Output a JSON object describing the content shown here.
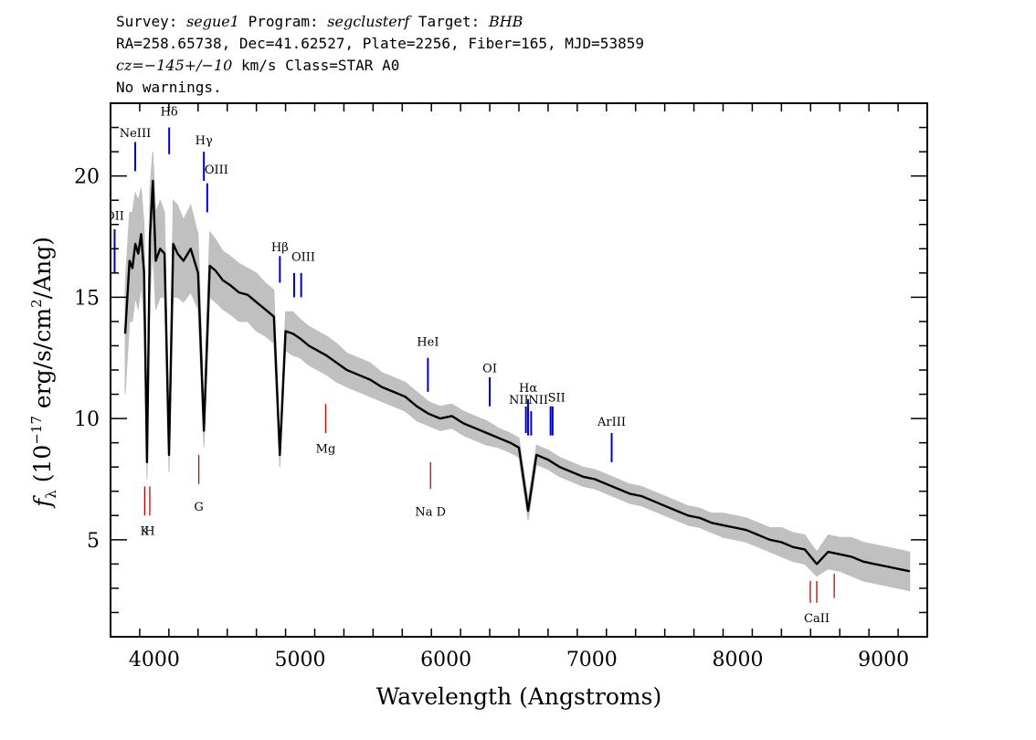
{
  "header": {
    "line1": {
      "survey_label": "Survey: ",
      "survey": "segue1",
      "program_label": " Program: ",
      "program": "segclusterf",
      "target_label": " Target: ",
      "target": "BHB"
    },
    "line2": "RA=258.65738, Dec=41.62527, Plate=2256, Fiber=165, MJD=53859",
    "line3": {
      "cz": "cz=−145+/−10",
      "rest": " km/s Class=STAR A0"
    },
    "line4": "No warnings."
  },
  "chart_data": {
    "type": "line",
    "title": "",
    "xlabel": "Wavelength (Angstroms)",
    "ylabel_prefix": "f",
    "ylabel_subscript": "λ",
    "ylabel_rest_1": "(10",
    "ylabel_exp": "−17",
    "ylabel_rest_2": "erg/s/cm",
    "ylabel_exp2": "2",
    "ylabel_rest_3": "/Ang)",
    "xlim": [
      3700,
      9300
    ],
    "ylim": [
      1,
      23
    ],
    "x_ticks": [
      4000,
      5000,
      6000,
      7000,
      8000,
      9000
    ],
    "y_ticks": [
      5,
      10,
      15,
      20
    ],
    "series": [
      {
        "role": "flux",
        "color": "#000000",
        "x": [
          3800,
          3830,
          3850,
          3870,
          3890,
          3910,
          3930,
          3950,
          3970,
          3990,
          4010,
          4040,
          4070,
          4101,
          4130,
          4160,
          4200,
          4250,
          4300,
          4340,
          4380,
          4420,
          4470,
          4520,
          4580,
          4640,
          4700,
          4760,
          4820,
          4861,
          4900,
          4950,
          5000,
          5060,
          5120,
          5180,
          5250,
          5320,
          5400,
          5480,
          5560,
          5640,
          5720,
          5800,
          5880,
          5960,
          6040,
          6120,
          6200,
          6280,
          6360,
          6440,
          6500,
          6563,
          6620,
          6700,
          6780,
          6860,
          6940,
          7020,
          7100,
          7180,
          7260,
          7340,
          7420,
          7500,
          7580,
          7660,
          7740,
          7820,
          7900,
          7980,
          8060,
          8140,
          8220,
          8300,
          8380,
          8460,
          8542,
          8620,
          8700,
          8780,
          8860,
          8940,
          9020,
          9100,
          9180
        ],
        "y": [
          13.5,
          16.5,
          16.2,
          17.2,
          16.8,
          17.6,
          16.0,
          8.2,
          17.5,
          19.8,
          16.5,
          17.0,
          16.8,
          8.5,
          17.2,
          16.8,
          16.5,
          17.0,
          16.0,
          9.5,
          16.3,
          16.1,
          15.7,
          15.5,
          15.2,
          15.1,
          14.8,
          14.5,
          14.2,
          8.5,
          13.6,
          13.5,
          13.3,
          13.0,
          12.8,
          12.6,
          12.3,
          12.0,
          11.8,
          11.6,
          11.3,
          11.1,
          10.9,
          10.5,
          10.2,
          10.0,
          10.1,
          9.8,
          9.6,
          9.4,
          9.2,
          9.0,
          8.8,
          6.2,
          8.5,
          8.3,
          8.0,
          7.8,
          7.6,
          7.5,
          7.3,
          7.1,
          6.9,
          6.8,
          6.6,
          6.4,
          6.2,
          6.0,
          5.9,
          5.7,
          5.6,
          5.5,
          5.4,
          5.2,
          5.0,
          4.9,
          4.7,
          4.6,
          4.0,
          4.5,
          4.4,
          4.3,
          4.1,
          4.0,
          3.9,
          3.8,
          3.7
        ]
      },
      {
        "role": "error",
        "color": "#c0c0c0",
        "x": [
          3800,
          3830,
          3850,
          3870,
          3890,
          3910,
          3930,
          3950,
          3970,
          3990,
          4010,
          4040,
          4070,
          4101,
          4130,
          4160,
          4200,
          4250,
          4300,
          4340,
          4380,
          4420,
          4470,
          4520,
          4580,
          4640,
          4700,
          4760,
          4820,
          4861,
          4900,
          4950,
          5000,
          5060,
          5120,
          5180,
          5250,
          5320,
          5400,
          5480,
          5560,
          5640,
          5720,
          5800,
          5880,
          5960,
          6040,
          6120,
          6200,
          6280,
          6360,
          6440,
          6500,
          6563,
          6620,
          6700,
          6780,
          6860,
          6940,
          7020,
          7100,
          7180,
          7260,
          7340,
          7420,
          7500,
          7580,
          7660,
          7740,
          7820,
          7900,
          7980,
          8060,
          8140,
          8220,
          8300,
          8380,
          8460,
          8542,
          8620,
          8700,
          8780,
          8860,
          8940,
          9020,
          9100,
          9180
        ],
        "y_low": [
          11.0,
          14.0,
          14.0,
          15.0,
          14.5,
          15.5,
          14.0,
          7.5,
          15.0,
          17.0,
          14.5,
          15.0,
          15.0,
          7.8,
          15.0,
          15.0,
          14.8,
          15.2,
          14.5,
          8.8,
          15.0,
          14.8,
          14.5,
          14.3,
          14.0,
          14.0,
          13.6,
          13.4,
          13.1,
          8.0,
          12.8,
          12.6,
          12.5,
          12.2,
          12.0,
          11.8,
          11.5,
          11.3,
          11.1,
          10.9,
          10.7,
          10.5,
          10.3,
          9.9,
          9.7,
          9.5,
          9.6,
          9.3,
          9.1,
          8.9,
          8.8,
          8.6,
          8.4,
          5.8,
          8.1,
          7.9,
          7.6,
          7.4,
          7.2,
          7.1,
          6.9,
          6.7,
          6.5,
          6.4,
          6.2,
          6.0,
          5.8,
          5.6,
          5.5,
          5.3,
          5.1,
          5.0,
          4.9,
          4.7,
          4.5,
          4.3,
          4.1,
          4.0,
          3.5,
          3.8,
          3.7,
          3.5,
          3.3,
          3.2,
          3.1,
          3.0,
          2.9
        ],
        "y_high": [
          15.5,
          18.5,
          18.5,
          19.3,
          19.0,
          19.5,
          18.0,
          9.5,
          19.5,
          21.0,
          18.5,
          19.0,
          18.5,
          9.5,
          19.0,
          18.8,
          18.2,
          18.8,
          17.6,
          10.5,
          17.7,
          17.4,
          16.9,
          16.7,
          16.4,
          16.2,
          16.0,
          15.6,
          15.3,
          9.0,
          14.4,
          14.4,
          14.1,
          13.8,
          13.6,
          13.4,
          13.1,
          12.7,
          12.5,
          12.3,
          11.9,
          11.7,
          11.5,
          11.1,
          10.7,
          10.5,
          10.6,
          10.3,
          10.1,
          9.9,
          9.6,
          9.4,
          9.2,
          6.6,
          8.9,
          8.7,
          8.4,
          8.2,
          8.0,
          7.9,
          7.7,
          7.5,
          7.3,
          7.2,
          7.0,
          6.8,
          6.6,
          6.4,
          6.3,
          6.1,
          6.1,
          6.0,
          5.9,
          5.7,
          5.5,
          5.5,
          5.3,
          5.2,
          4.5,
          5.2,
          5.1,
          5.1,
          4.9,
          4.8,
          4.7,
          4.6,
          4.5
        ]
      }
    ],
    "emission_lines": [
      {
        "label": "OII",
        "x": 3728,
        "color": "#0000cc",
        "y1": 16.0,
        "y2": 17.8,
        "label_y": 18.2,
        "label_align": "middle"
      },
      {
        "label": "NeIII",
        "x": 3869,
        "color": "#0000cc",
        "y1": 20.2,
        "y2": 21.4,
        "label_y": 21.6,
        "label_align": "middle"
      },
      {
        "label": "Hδ",
        "x": 4102,
        "color": "#0000cc",
        "y1": 20.9,
        "y2": 22.0,
        "label_y": 22.5,
        "label_align": "middle"
      },
      {
        "label": "Hγ",
        "x": 4340,
        "color": "#0000cc",
        "y1": 19.8,
        "y2": 21.0,
        "label_y": 21.3,
        "label_align": "middle"
      },
      {
        "label": "OIII",
        "x": 4363,
        "color": "#0000cc",
        "y1": 18.5,
        "y2": 19.7,
        "label_y": 20.1,
        "label_align": "start"
      },
      {
        "label": "Hβ",
        "x": 4861,
        "color": "#0000cc",
        "y1": 15.6,
        "y2": 16.7,
        "label_y": 16.9,
        "label_align": "middle"
      },
      {
        "label": "OIII",
        "x": 4959,
        "color": "#0000cc",
        "y1": 15.0,
        "y2": 16.0,
        "label_y": 16.5,
        "label_align": "start"
      },
      {
        "label": "",
        "x": 5007,
        "color": "#0000cc",
        "y1": 15.0,
        "y2": 16.0
      },
      {
        "label": "HeI",
        "x": 5876,
        "color": "#0000cc",
        "y1": 11.1,
        "y2": 12.5,
        "label_y": 13.0,
        "label_align": "middle"
      },
      {
        "label": "OI",
        "x": 6300,
        "color": "#0000cc",
        "y1": 10.5,
        "y2": 11.7,
        "label_y": 11.9,
        "label_align": "middle"
      },
      {
        "label": "NII",
        "x": 6548,
        "color": "#0000cc",
        "y1": 9.4,
        "y2": 10.5,
        "label_y": 10.6,
        "label_align": "end"
      },
      {
        "label": "Hα",
        "x": 6563,
        "color": "#0000cc",
        "y1": 9.3,
        "y2": 10.8,
        "label_y": 11.1,
        "label_align": "middle"
      },
      {
        "label": "NII",
        "x": 6584,
        "color": "#0000cc",
        "y1": 9.3,
        "y2": 10.3,
        "label_y": 10.6,
        "label_align": "start"
      },
      {
        "label": "SII",
        "x": 6717,
        "color": "#0000cc",
        "y1": 9.3,
        "y2": 10.5,
        "label_y": 10.7,
        "label_align": "start"
      },
      {
        "label": "",
        "x": 6731,
        "color": "#0000cc",
        "y1": 9.3,
        "y2": 10.5
      },
      {
        "label": "ArIII",
        "x": 7136,
        "color": "#0000cc",
        "y1": 8.2,
        "y2": 9.4,
        "label_y": 9.7,
        "label_align": "middle"
      }
    ],
    "absorption_lines": [
      {
        "label": "K",
        "x": 3934,
        "color": "#cc0000",
        "y1": 6.0,
        "y2": 7.2,
        "label_y": 5.2,
        "label_align": "middle"
      },
      {
        "label": "H",
        "x": 3969,
        "color": "#cc0000",
        "y1": 6.0,
        "y2": 7.2,
        "label_y": 5.2,
        "label_align": "middle"
      },
      {
        "label": "G",
        "x": 4305,
        "color": "#cc0000",
        "y1": 7.3,
        "y2": 8.5,
        "label_y": 6.2,
        "label_align": "middle"
      },
      {
        "label": "Mg",
        "x": 5175,
        "color": "#cc0000",
        "y1": 9.4,
        "y2": 10.6,
        "label_y": 8.6,
        "label_align": "middle"
      },
      {
        "label": "Na D",
        "x": 5894,
        "color": "#cc0000",
        "y1": 7.1,
        "y2": 8.2,
        "label_y": 6.0,
        "label_align": "middle"
      },
      {
        "label": "",
        "x": 8498,
        "color": "#cc0000",
        "y1": 2.4,
        "y2": 3.3
      },
      {
        "label": "CaII",
        "x": 8542,
        "color": "#cc0000",
        "y1": 2.4,
        "y2": 3.3,
        "label_y": 1.6,
        "label_align": "middle"
      },
      {
        "label": "",
        "x": 8662,
        "color": "#cc0000",
        "y1": 2.6,
        "y2": 3.6
      }
    ]
  }
}
